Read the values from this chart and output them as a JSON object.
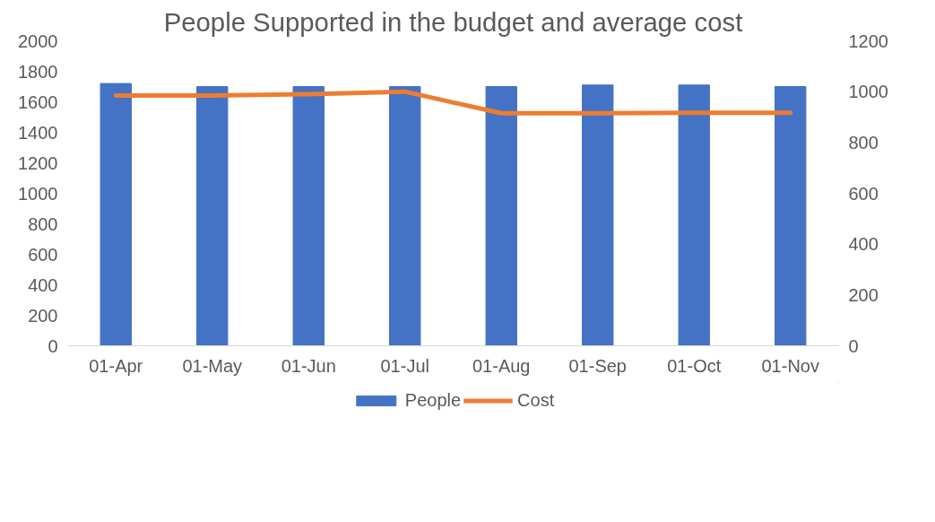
{
  "chart_data": {
    "type": "bar",
    "title": "People Supported in the budget and average cost",
    "categories": [
      "01-Apr",
      "01-May",
      "01-Jun",
      "01-Jul",
      "01-Aug",
      "01-Sep",
      "01-Oct",
      "01-Nov"
    ],
    "series": [
      {
        "name": "People",
        "color": "#4472c4",
        "values": [
          1720,
          1700,
          1700,
          1700,
          1700,
          1710,
          1710,
          1700
        ]
      },
      {
        "name": "Cost",
        "type": "line",
        "axis": "y2",
        "color": "#ed7d31",
        "values": [
          985,
          985,
          990,
          1000,
          915,
          915,
          917,
          917
        ]
      }
    ],
    "ylim": [
      0,
      2000
    ],
    "yticks": [
      0,
      200,
      400,
      600,
      800,
      1000,
      1200,
      1400,
      1600,
      1800,
      2000
    ],
    "y2lim": [
      0,
      1200
    ],
    "y2ticks": [
      0,
      200,
      400,
      600,
      800,
      1000,
      1200
    ],
    "grid": false,
    "legend": "bottom"
  }
}
